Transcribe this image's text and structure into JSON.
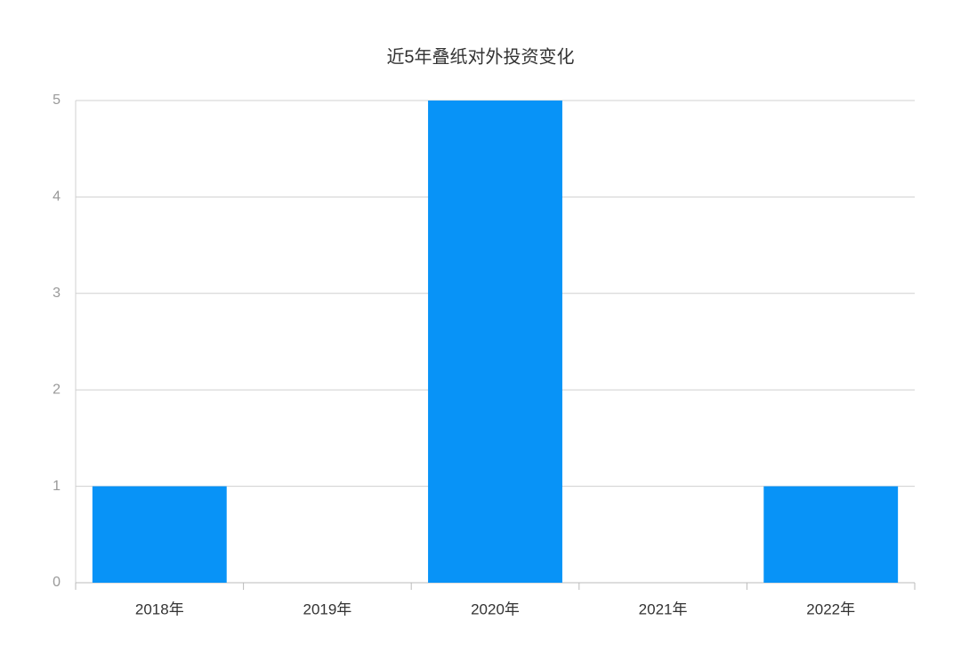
{
  "chart_data": {
    "type": "bar",
    "title": "近5年叠纸对外投资变化",
    "categories": [
      "2018年",
      "2019年",
      "2020年",
      "2021年",
      "2022年"
    ],
    "values": [
      1,
      0,
      5,
      0,
      1
    ],
    "color": "#0893f7",
    "ylim": [
      0,
      5
    ],
    "yticks": [
      0,
      1,
      2,
      3,
      4,
      5
    ],
    "grid": true
  }
}
